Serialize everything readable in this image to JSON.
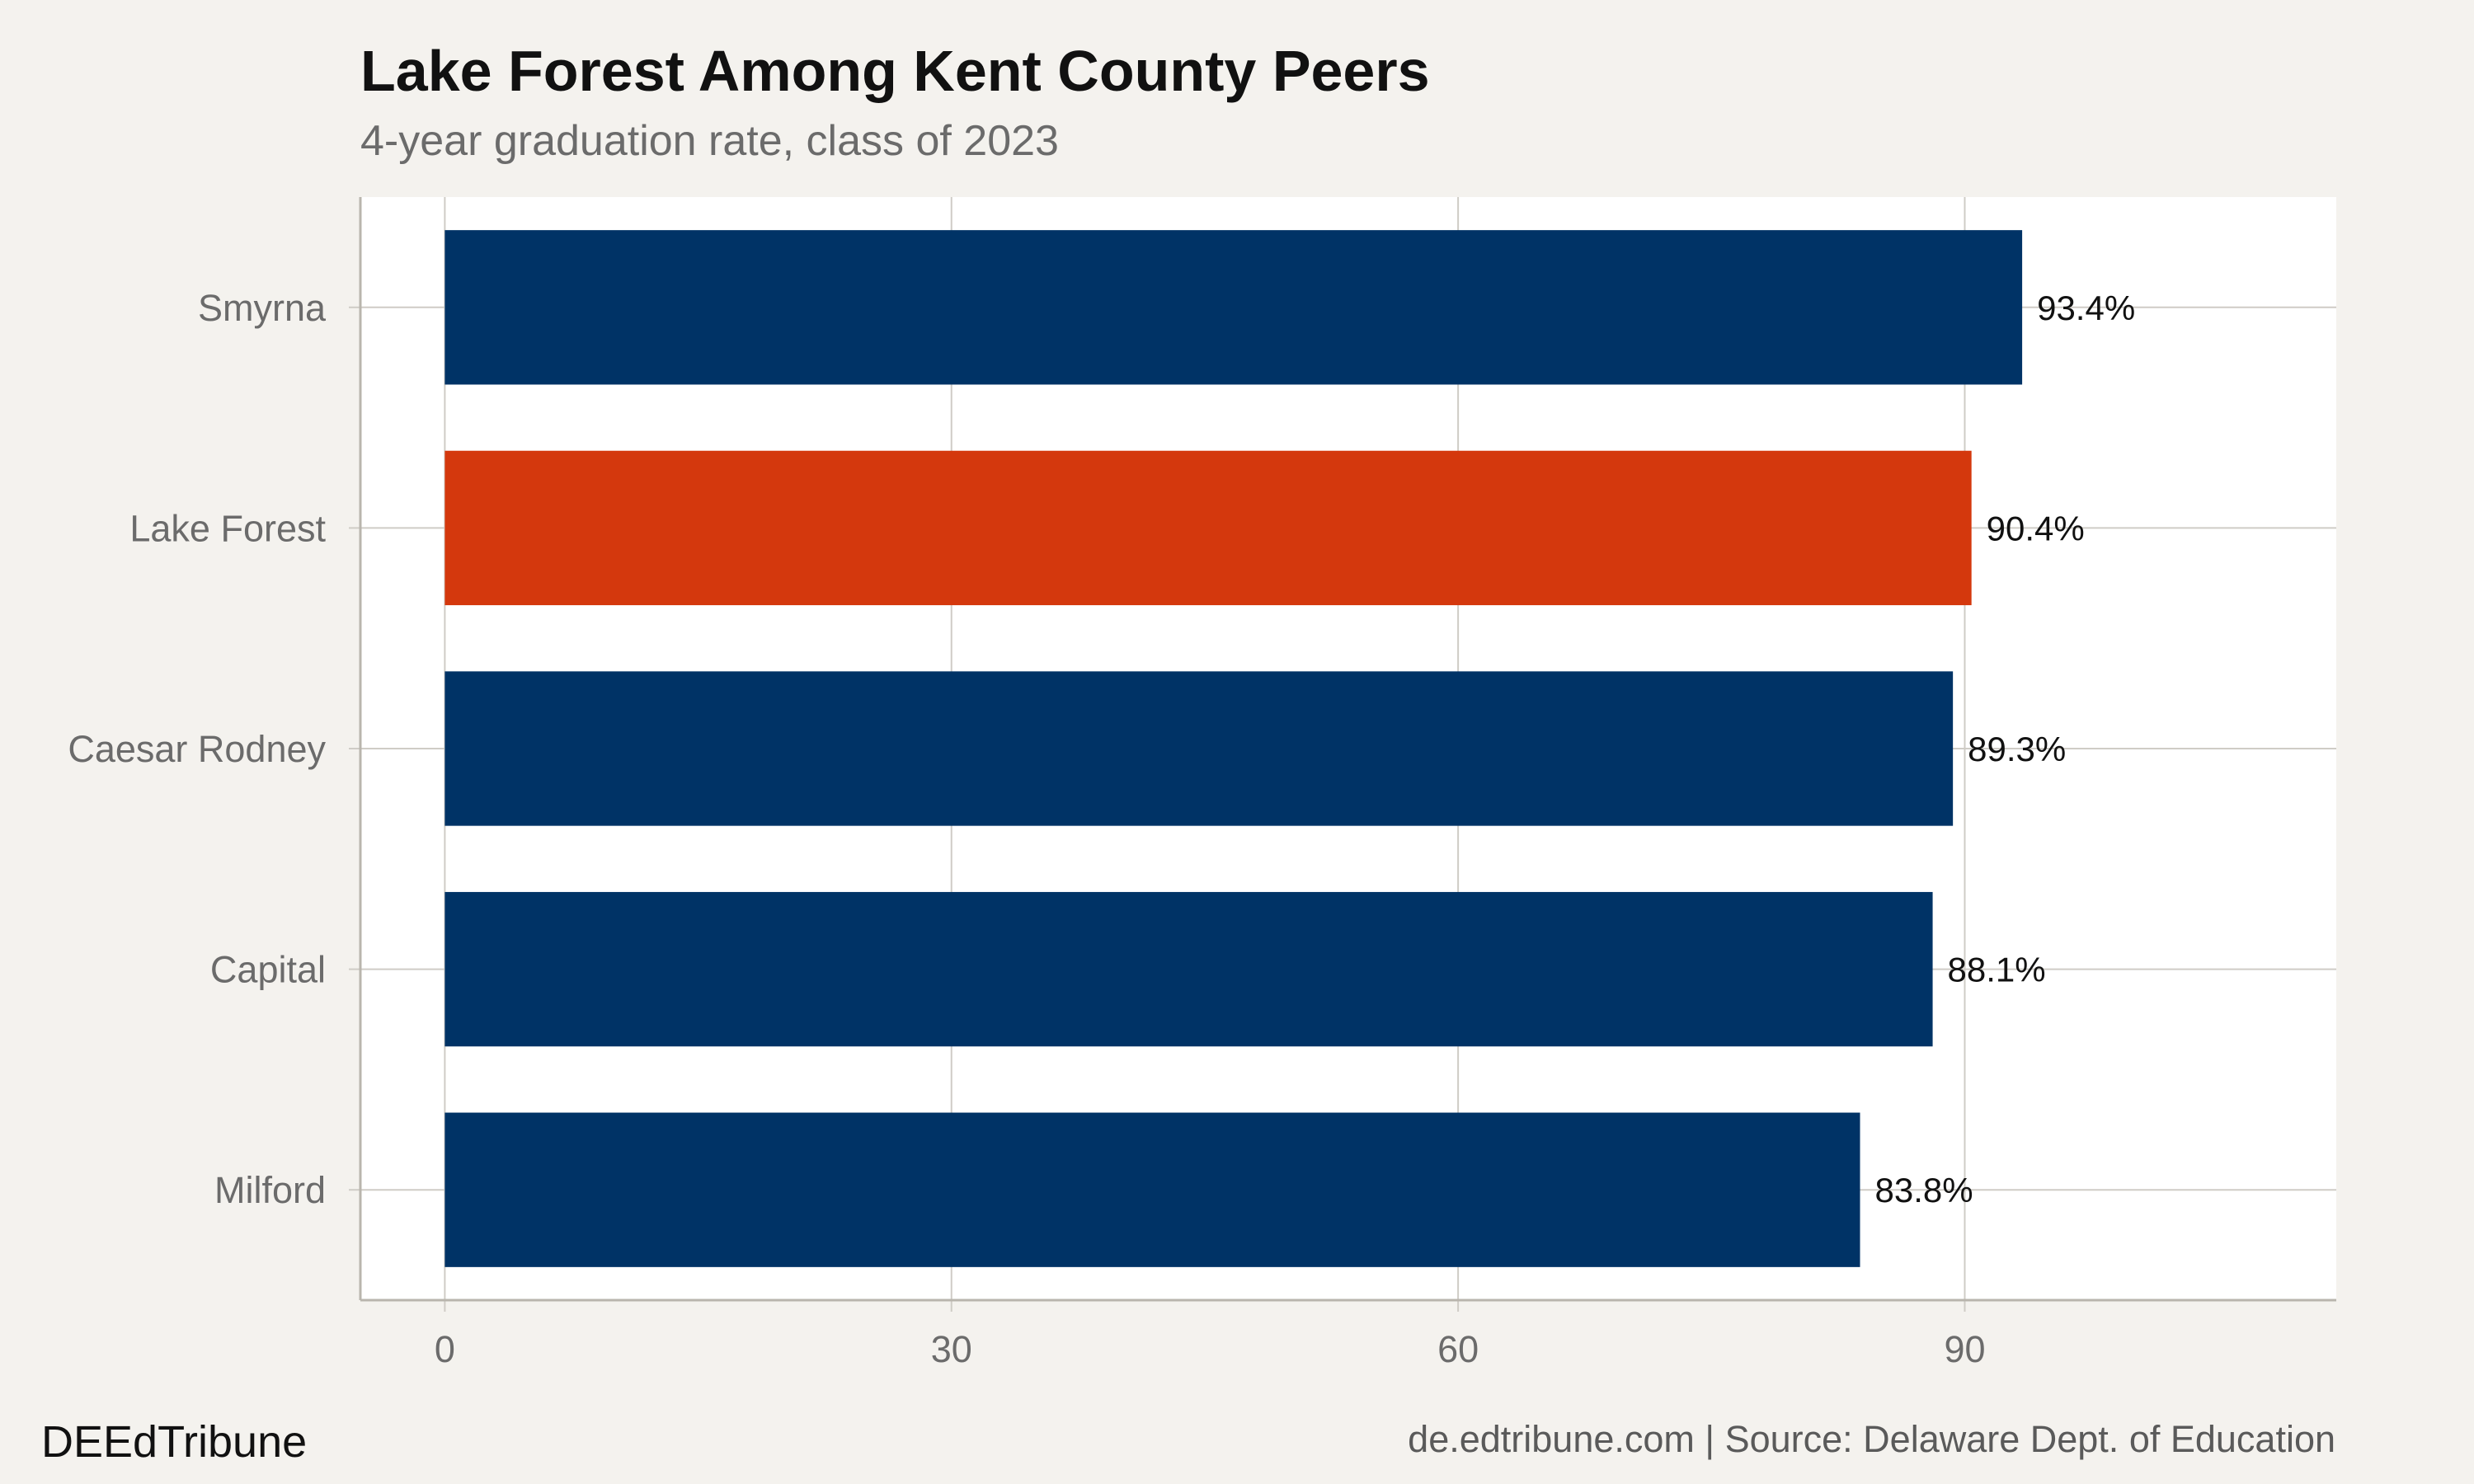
{
  "header": {
    "title": "Lake Forest Among Kent County Peers",
    "subtitle": "4-year graduation rate, class of 2023"
  },
  "footer": {
    "brand": "DEEdTribune",
    "source": "de.edtribune.com | Source: Delaware Dept. of Education"
  },
  "colors": {
    "background": "#f4f2ee",
    "plot_background": "#ffffff",
    "bar_default": "#003366",
    "bar_highlight": "#d4380d",
    "grid": "#cfccc6"
  },
  "chart_data": {
    "type": "bar",
    "orientation": "horizontal",
    "categories": [
      "Smyrna",
      "Lake Forest",
      "Caesar Rodney",
      "Capital",
      "Milford"
    ],
    "values": [
      93.4,
      90.4,
      89.3,
      88.1,
      83.8
    ],
    "value_labels": [
      "93.4%",
      "90.4%",
      "89.3%",
      "88.1%",
      "83.8%"
    ],
    "highlight": "Lake Forest",
    "title": "Lake Forest Among Kent County Peers",
    "subtitle": "4-year graduation rate, class of 2023",
    "xlabel": "",
    "ylabel": "",
    "xlim": [
      -5,
      112
    ],
    "xticks": [
      0,
      30,
      60,
      90
    ],
    "grid": true,
    "legend": "none"
  }
}
